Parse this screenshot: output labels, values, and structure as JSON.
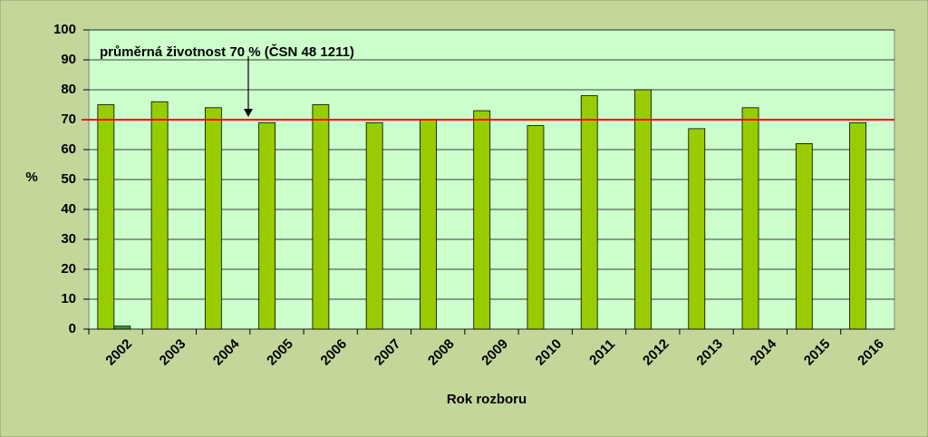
{
  "chart_data": {
    "type": "bar",
    "categories": [
      "2002",
      "2003",
      "2004",
      "2005",
      "2006",
      "2007",
      "2008",
      "2009",
      "2010",
      "2011",
      "2012",
      "2013",
      "2014",
      "2015",
      "2016"
    ],
    "series": [
      {
        "color": "#99cc00",
        "values": [
          75,
          76,
          74,
          69,
          75,
          69,
          70,
          73,
          68,
          78,
          80,
          67,
          74,
          62,
          69
        ]
      },
      {
        "color": "#339933",
        "values": [
          1,
          null,
          null,
          null,
          null,
          null,
          null,
          null,
          null,
          null,
          null,
          null,
          null,
          null,
          null
        ]
      }
    ],
    "ylim": [
      0,
      100
    ],
    "yticks": [
      0,
      10,
      20,
      30,
      40,
      50,
      60,
      70,
      80,
      90,
      100
    ],
    "grid": true,
    "y_label": "%",
    "x_label": "Rok rozboru",
    "reference_line": {
      "value": 70,
      "color": "#ff0000",
      "label": "průměrná životnost 70 % (ČSN 48 1211)"
    }
  }
}
